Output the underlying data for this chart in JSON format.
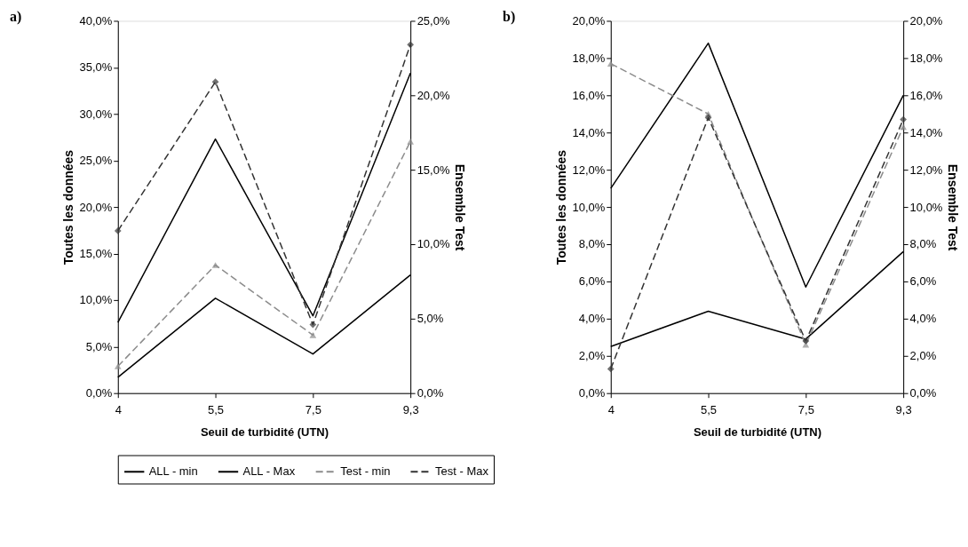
{
  "chart_data": [
    {
      "type": "line",
      "title": "a)",
      "xlabel": "Seuil de turbidité (UTN)",
      "ylabel": "Toutes les données",
      "y2label": "Ensemble Test",
      "categories": [
        "4",
        "5,5",
        "7,5",
        "9,3"
      ],
      "ylim": [
        0,
        40
      ],
      "yticks": [
        {
          "value": 0,
          "label": "0,0%"
        },
        {
          "value": 5,
          "label": "5,0%"
        },
        {
          "value": 10,
          "label": "10,0%"
        },
        {
          "value": 15,
          "label": "15,0%"
        },
        {
          "value": 20,
          "label": "20,0%"
        },
        {
          "value": 25,
          "label": "25,0%"
        },
        {
          "value": 30,
          "label": "30,0%"
        },
        {
          "value": 35,
          "label": "35,0%"
        },
        {
          "value": 40,
          "label": "40,0%"
        }
      ],
      "y2lim": [
        0,
        25
      ],
      "y2ticks": [
        {
          "value": 0,
          "label": "0,0%"
        },
        {
          "value": 5,
          "label": "5,0%"
        },
        {
          "value": 10,
          "label": "10,0%"
        },
        {
          "value": 15,
          "label": "15,0%"
        },
        {
          "value": 20,
          "label": "20,0%"
        },
        {
          "value": 25,
          "label": "25,0%"
        }
      ],
      "grid": false,
      "legend": "bottom",
      "series": [
        {
          "name": "ALL - min",
          "color": "#000000",
          "line_style": "solid",
          "marker": "none",
          "values": [
            1.7,
            10.2,
            4.2,
            12.7
          ]
        },
        {
          "name": "ALL - Max",
          "color": "#000000",
          "line_style": "solid",
          "marker": "none",
          "values": [
            7.6,
            27.3,
            8.3,
            34.4
          ]
        },
        {
          "name": "Test - min",
          "color": "#8c8c8c",
          "line_style": "dashed",
          "marker": "triangle",
          "axis": "y2",
          "values": [
            1.8,
            8.6,
            3.9,
            16.9
          ]
        },
        {
          "name": "Test - Max",
          "color": "#333333",
          "line_style": "dashed",
          "marker": "diamond",
          "axis": "y2",
          "values": [
            10.9,
            20.9,
            4.6,
            23.4
          ]
        }
      ]
    },
    {
      "type": "line",
      "title": "b)",
      "xlabel": "Seuil de turbidité (UTN)",
      "ylabel": "Toutes les données",
      "y2label": "Ensemble Test",
      "categories": [
        "4",
        "5,5",
        "7,5",
        "9,3"
      ],
      "ylim": [
        0,
        20
      ],
      "yticks": [
        {
          "value": 0,
          "label": "0,0%"
        },
        {
          "value": 2,
          "label": "2,0%"
        },
        {
          "value": 4,
          "label": "4,0%"
        },
        {
          "value": 6,
          "label": "6,0%"
        },
        {
          "value": 8,
          "label": "8,0%"
        },
        {
          "value": 10,
          "label": "10,0%"
        },
        {
          "value": 12,
          "label": "12,0%"
        },
        {
          "value": 14,
          "label": "14,0%"
        },
        {
          "value": 16,
          "label": "16,0%"
        },
        {
          "value": 18,
          "label": "18,0%"
        },
        {
          "value": 20,
          "label": "20,0%"
        }
      ],
      "y2lim": [
        0,
        20
      ],
      "y2ticks": [
        {
          "value": 0,
          "label": "0,0%"
        },
        {
          "value": 2,
          "label": "2,0%"
        },
        {
          "value": 4,
          "label": "4,0%"
        },
        {
          "value": 6,
          "label": "6,0%"
        },
        {
          "value": 8,
          "label": "8,0%"
        },
        {
          "value": 10,
          "label": "10,0%"
        },
        {
          "value": 12,
          "label": "12,0%"
        },
        {
          "value": 14,
          "label": "14,0%"
        },
        {
          "value": 16,
          "label": "16,0%"
        },
        {
          "value": 18,
          "label": "18,0%"
        },
        {
          "value": 20,
          "label": "20,0%"
        }
      ],
      "grid": false,
      "legend": "bottom",
      "series": [
        {
          "name": "ALL - min",
          "color": "#000000",
          "line_style": "solid",
          "marker": "none",
          "values": [
            2.5,
            4.4,
            2.9,
            7.6
          ]
        },
        {
          "name": "ALL - Max",
          "color": "#000000",
          "line_style": "solid",
          "marker": "none",
          "values": [
            11.0,
            18.8,
            5.7,
            16.0
          ]
        },
        {
          "name": "Test - min",
          "color": "#8c8c8c",
          "line_style": "dashed",
          "marker": "triangle",
          "axis": "y2",
          "values": [
            17.7,
            15.0,
            2.6,
            14.3
          ]
        },
        {
          "name": "Test - Max",
          "color": "#333333",
          "line_style": "dashed",
          "marker": "diamond",
          "axis": "y2",
          "values": [
            1.3,
            14.8,
            2.8,
            14.7
          ]
        }
      ]
    }
  ]
}
